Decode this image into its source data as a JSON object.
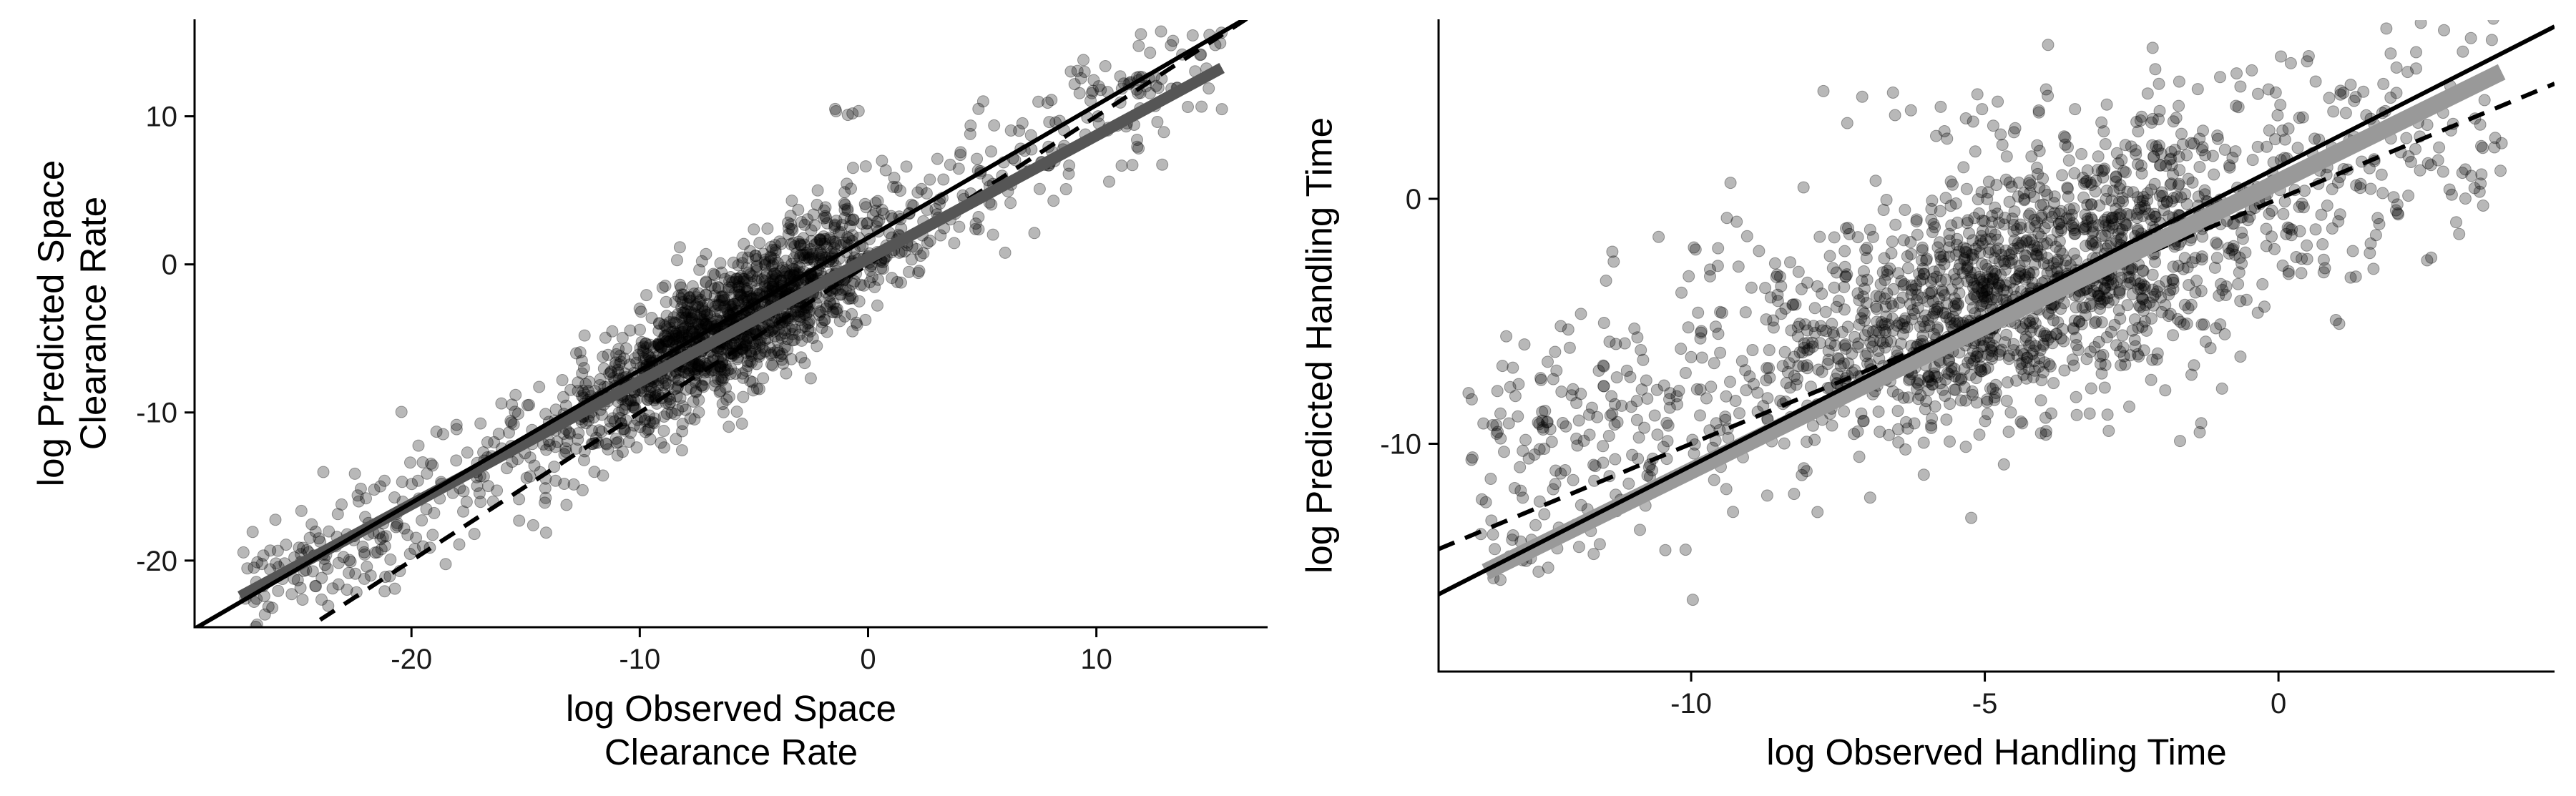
{
  "chart_data": [
    {
      "type": "scatter",
      "xlabel": [
        "log Observed Space",
        "Clearance Rate"
      ],
      "ylabel": [
        "log Predicted Space",
        "Clearance Rate"
      ],
      "xlim": [
        -29.5,
        17.5
      ],
      "ylim": [
        -24.5,
        16.5
      ],
      "xticks": [
        -20,
        -10,
        0,
        10
      ],
      "yticks": [
        -20,
        -10,
        0,
        10
      ],
      "xtick_labels": [
        "-20",
        "-10",
        "0",
        "10"
      ],
      "ytick_labels": [
        "-20",
        "-10",
        "0",
        "10"
      ],
      "grid": false,
      "legend": "none",
      "points": {
        "n": 1800,
        "color": "#000000",
        "opacity": 0.28,
        "core_mean": [
          -6,
          -4.5
        ],
        "core_sd": [
          3.5,
          2.4
        ],
        "fit_slope": 0.87,
        "fit_intercept": 1.2,
        "residual_sd": 2.3,
        "x_range": [
          -27.5,
          15.5
        ],
        "extra_clusters": [
          {
            "x": [
              9,
              12
            ],
            "y": [
              11.5,
              13
            ],
            "n": 14
          },
          {
            "x": [
              -1.5,
              0.5
            ],
            "y": [
              10,
              10.5
            ],
            "n": 5
          },
          {
            "x": [
              7.5,
              9
            ],
            "y": [
              6.5,
              7
            ],
            "n": 6
          },
          {
            "x": [
              -27.5,
              -20
            ],
            "y": [
              -22,
              -18
            ],
            "n": 30
          }
        ]
      },
      "lines": [
        {
          "name": "",
          "style": "solid",
          "slope": 0.895,
          "intercept": 1.8,
          "x": [
            -29.5,
            17.5
          ],
          "color": "#000000",
          "width": 6
        },
        {
          "name": "",
          "style": "dashed",
          "slope": 1.0,
          "intercept": 0.0,
          "x": [
            -24,
            17.5
          ],
          "color": "#000000",
          "width": 6
        },
        {
          "name": "",
          "style": "ribbon",
          "slope": 0.83,
          "intercept": 0.4,
          "x": [
            -27.5,
            15.5
          ],
          "color": "#555555",
          "width": 16
        }
      ]
    },
    {
      "type": "scatter",
      "xlabel": [
        "log Observed Handling Time"
      ],
      "ylabel": [
        "log Predicted Handling Time"
      ],
      "xlim": [
        -14.3,
        4.7
      ],
      "ylim": [
        -19.3,
        7.3
      ],
      "xticks": [
        -10,
        -5,
        0
      ],
      "yticks": [
        -10,
        0
      ],
      "xtick_labels": [
        "-10",
        "-5",
        "0"
      ],
      "ytick_labels": [
        "-10",
        "0"
      ],
      "grid": false,
      "legend": "none",
      "points": {
        "n": 1900,
        "color": "#000000",
        "opacity": 0.28,
        "core_mean": [
          -4.2,
          -3.5
        ],
        "core_sd": [
          2.4,
          2.2
        ],
        "fit_slope": 0.8,
        "fit_intercept": 0.0,
        "residual_sd": 2.5,
        "x_range": [
          -13.8,
          3.8
        ],
        "extra_clusters": [
          {
            "x": [
              -13.5,
              -10.5
            ],
            "y": [
              -15,
              -5
            ],
            "n": 60
          },
          {
            "x": [
              -8,
              -2
            ],
            "y": [
              2,
              4.5
            ],
            "n": 20
          }
        ]
      },
      "lines": [
        {
          "name": "",
          "style": "solid",
          "slope": 1.22,
          "intercept": 1.3,
          "x": [
            -14.3,
            4.7
          ],
          "color": "#000000",
          "width": 6
        },
        {
          "name": "",
          "style": "dashed",
          "slope": 1.0,
          "intercept": 0.0,
          "x": [
            -14.3,
            4.7
          ],
          "color": "#000000",
          "width": 6
        },
        {
          "name": "",
          "style": "ribbon",
          "slope": 1.18,
          "intercept": 0.7,
          "x": [
            -13.5,
            3.8
          ],
          "color": "#999999",
          "width": 24
        }
      ]
    }
  ]
}
